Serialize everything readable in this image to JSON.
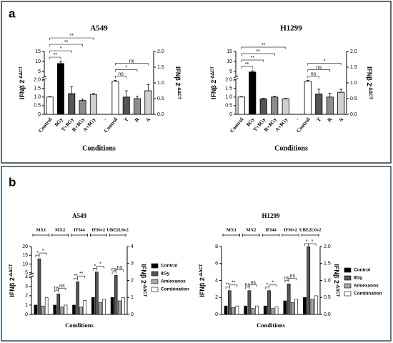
{
  "panels": [
    "a",
    "b"
  ],
  "chart_data": [
    {
      "type": "bar",
      "title": "A549",
      "categories": [
        "Control",
        "8Gy",
        "T+8Gy",
        "R+8Gy",
        "A+8Gy",
        "-",
        "Control",
        "T",
        "R",
        "A"
      ],
      "series": [
        {
          "values": [
            1.0,
            9,
            1.2,
            0.8,
            1.15,
            null,
            null,
            null,
            null,
            null
          ],
          "errors": [
            0.02,
            1.0,
            0.4,
            0.08,
            0.05,
            null,
            null,
            null,
            null,
            null
          ],
          "colors": [
            "#ffffff",
            "#000000",
            "#555555",
            "#8c8c8c",
            "#d0d0d0",
            null,
            null,
            null,
            null,
            null
          ]
        },
        {
          "axis": "y2",
          "values": [
            null,
            null,
            null,
            null,
            null,
            null,
            1.05,
            0.55,
            0.5,
            0.75
          ],
          "errors": [
            null,
            null,
            null,
            null,
            null,
            null,
            0.03,
            0.2,
            0.08,
            0.2
          ],
          "colors": [
            null,
            null,
            null,
            null,
            null,
            null,
            "#ffffff",
            "#555555",
            "#8c8c8c",
            "#d0d0d0"
          ]
        }
      ],
      "ylim": [
        0,
        15
      ],
      "ybreak": [
        2,
        2.5
      ],
      "yticks": [
        0,
        0.5,
        {
          "value": 1,
          "label": "1.0"
        },
        1.5,
        {
          "value": 2,
          "label": "2.0"
        },
        5,
        10,
        15
      ],
      "y2lim": [
        0,
        2
      ],
      "y2ticks": [
        {
          "value": 0,
          "label": "0.0"
        },
        0.5,
        {
          "value": 1,
          "label": "1.0"
        },
        1.5,
        {
          "value": 2,
          "label": "2.0"
        }
      ],
      "ylabel": "IFNβ 2",
      "ylabel_sup": "-ΔΔCT",
      "y2label": "IFNβ 2",
      "y2label_sup": "-ΔΔCT",
      "xlabel": "Conditions",
      "left_annotations": [
        "**",
        "*",
        "**",
        "**"
      ],
      "right_annotations": [
        "ns",
        "*",
        "ns"
      ]
    },
    {
      "type": "bar",
      "title": "H1299",
      "categories": [
        "Control",
        "8Gy",
        "T+8Gy",
        "R+8Gy",
        "A+8Gy",
        "-",
        "Control",
        "T",
        "R",
        "A"
      ],
      "series": [
        {
          "values": [
            1.0,
            4.8,
            0.9,
            1.0,
            0.9,
            null,
            null,
            null,
            null,
            null
          ],
          "errors": [
            0.02,
            0.6,
            0.03,
            0.04,
            0.03,
            null,
            null,
            null,
            null,
            null
          ],
          "colors": [
            "#ffffff",
            "#000000",
            "#555555",
            "#8c8c8c",
            "#d0d0d0",
            null,
            null,
            null,
            null,
            null
          ]
        },
        {
          "axis": "y2",
          "values": [
            null,
            null,
            null,
            null,
            null,
            null,
            1.05,
            0.65,
            0.55,
            0.7
          ],
          "errors": [
            null,
            null,
            null,
            null,
            null,
            null,
            0.03,
            0.15,
            0.12,
            0.1
          ],
          "colors": [
            null,
            null,
            null,
            null,
            null,
            null,
            "#ffffff",
            "#555555",
            "#8c8c8c",
            "#d0d0d0"
          ]
        }
      ],
      "ylim": [
        0,
        15
      ],
      "ybreak": [
        2,
        2.5
      ],
      "yticks": [
        0,
        0.5,
        {
          "value": 1,
          "label": "1.0"
        },
        1.5,
        {
          "value": 2,
          "label": "2.0"
        },
        5,
        10,
        15
      ],
      "y2lim": [
        0,
        2
      ],
      "y2ticks": [
        {
          "value": 0,
          "label": "0.0"
        },
        0.5,
        {
          "value": 1,
          "label": "1.0"
        },
        1.5,
        {
          "value": 2,
          "label": "2.0"
        }
      ],
      "ylabel": "IFNβ 2",
      "ylabel_sup": "-ΔΔCT",
      "y2label": "IFNβ 2",
      "y2label_sup": "-ΔΔCT",
      "xlabel": "Conditions",
      "left_annotations": [
        "**",
        "**",
        "**",
        "**"
      ],
      "right_annotations": [
        "ns",
        "ns",
        "*"
      ]
    },
    {
      "type": "grouped_bar",
      "title": "A549",
      "categories": [
        "MX1",
        "MX2",
        "IFI44",
        "IFI6v2",
        "UBE2L6v2"
      ],
      "category_axis": [
        "y",
        "y",
        "y",
        "y2",
        "y2"
      ],
      "series": [
        {
          "name": "Control",
          "color": "#000000",
          "values": [
            1,
            1,
            1,
            1,
            1
          ]
        },
        {
          "name": "8Gy",
          "color": "#555555",
          "values": [
            13,
            2.2,
            3.5,
            2.5,
            2.3
          ]
        },
        {
          "name": "Amlexanox",
          "color": "#a6a6a6",
          "values": [
            0.9,
            0.8,
            0.8,
            0.7,
            0.8
          ]
        },
        {
          "name": "Combination",
          "color": "#ffffff",
          "values": [
            1.8,
            1.0,
            1.5,
            0.9,
            1.0
          ]
        }
      ],
      "annotations": [
        [
          "*",
          "*"
        ],
        [
          "ns",
          "ns"
        ],
        [
          "**",
          "**"
        ],
        [
          "*",
          "*"
        ],
        [
          "ns",
          "ns"
        ]
      ],
      "ylim": [
        0,
        20
      ],
      "ybreak": [
        4,
        4.5
      ],
      "yticks": [
        0,
        1,
        2,
        3,
        4,
        5,
        10,
        15,
        20
      ],
      "y2lim": [
        0,
        4
      ],
      "y2ticks": [
        0,
        1,
        2,
        3,
        4
      ],
      "ylabel": "IFNβ 2",
      "ylabel_sup": "-ΔΔCT",
      "y2label": "IFNβ 2",
      "y2label_sup": "-ΔΔCT",
      "xlabel": "Conditions"
    },
    {
      "type": "grouped_bar",
      "title": "H1299",
      "categories": [
        "MX1",
        "MX2",
        "IFI44",
        "IFI6v2",
        "UBE2L6v2"
      ],
      "category_axis": [
        "y",
        "y",
        "y",
        "y2",
        "y2"
      ],
      "series": [
        {
          "name": "Control",
          "color": "#000000",
          "values": [
            1,
            1,
            1,
            0.4,
            0.5
          ]
        },
        {
          "name": "8Gy",
          "color": "#555555",
          "values": [
            2.8,
            2.8,
            2.8,
            0.9,
            2.0
          ]
        },
        {
          "name": "Amlexanox",
          "color": "#a6a6a6",
          "values": [
            0.8,
            0.7,
            0.7,
            0.35,
            0.45
          ]
        },
        {
          "name": "Combination",
          "color": "#ffffff",
          "values": [
            1.0,
            1.0,
            0.9,
            0.45,
            0.55
          ]
        }
      ],
      "annotations": [
        [
          "**",
          "**"
        ],
        [
          "ns",
          "ns"
        ],
        [
          "*",
          "*"
        ],
        [
          "ns",
          "ns"
        ],
        [
          "*",
          "*"
        ]
      ],
      "ylim": [
        0,
        8
      ],
      "yticks": [
        0,
        2,
        4,
        6,
        8
      ],
      "y2lim": [
        0,
        2
      ],
      "y2ticks": [
        {
          "value": 0,
          "label": "0.0"
        },
        0.5,
        {
          "value": 1,
          "label": "1.0"
        },
        1.5,
        {
          "value": 2,
          "label": "2.0"
        }
      ],
      "ylabel": "IFNβ 2",
      "ylabel_sup": "-ΔΔCT",
      "y2label": "IFNβ 2",
      "y2label_sup": "-ΔΔCT",
      "xlabel": "Conditions"
    }
  ]
}
